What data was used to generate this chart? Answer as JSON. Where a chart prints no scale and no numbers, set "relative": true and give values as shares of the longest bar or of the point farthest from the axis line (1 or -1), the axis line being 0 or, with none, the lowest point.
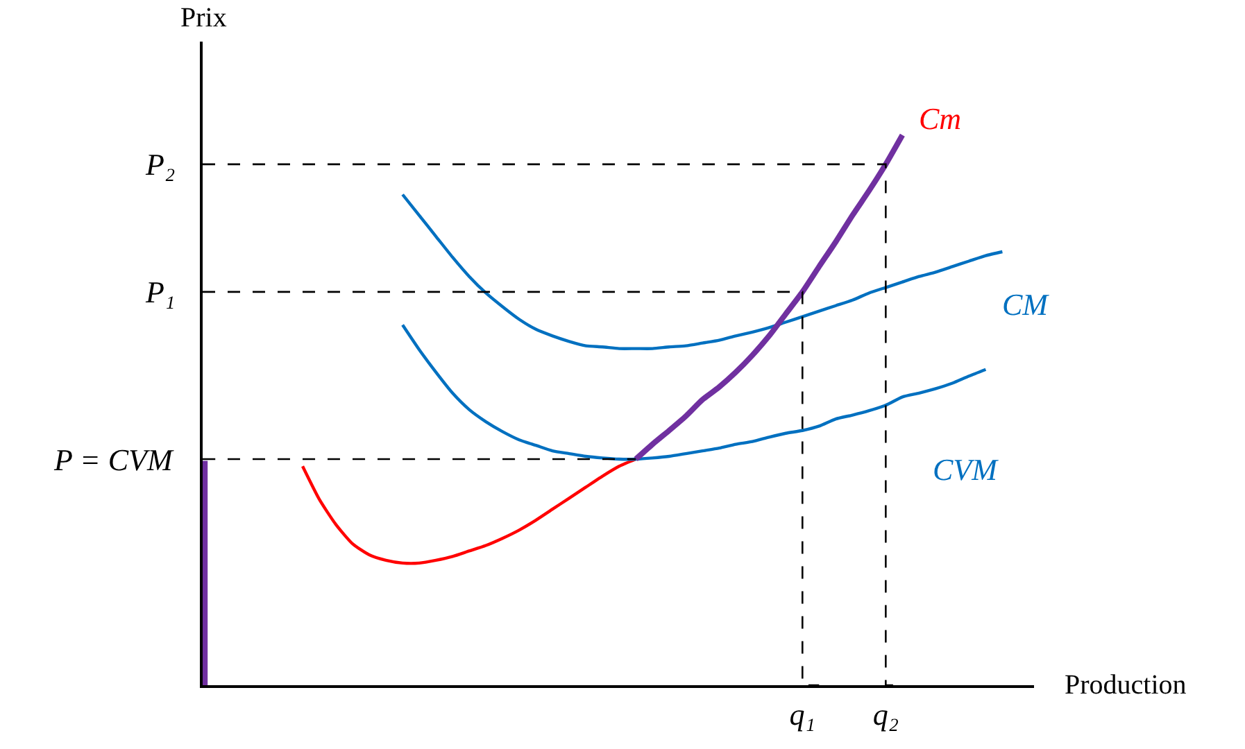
{
  "chart_data": {
    "type": "line",
    "relative": true,
    "xlabel": "Production",
    "ylabel": "Prix",
    "categories": [
      null,
      null,
      null,
      null,
      null,
      null,
      null,
      null,
      null,
      null,
      null,
      null,
      null,
      null,
      null,
      null,
      null,
      null,
      null,
      null,
      null,
      null,
      null,
      null,
      null,
      null,
      null,
      null,
      null,
      null,
      null,
      null,
      null,
      null,
      null,
      null,
      "q₁",
      null,
      null,
      null,
      null,
      "q₂",
      null,
      null,
      null,
      null,
      null,
      null,
      null,
      null
    ],
    "legend": false,
    "marker": "none",
    "series": [
      {
        "name": "Cm",
        "color": "#ff0000",
        "values": [
          null,
          null,
          null,
          null,
          null,
          null,
          0.398,
          0.338,
          0.292,
          0.257,
          0.237,
          0.227,
          0.222,
          0.222,
          0.227,
          0.234,
          0.244,
          0.254,
          0.267,
          0.282,
          0.3,
          0.32,
          0.34,
          0.36,
          0.38,
          0.398,
          0.411,
          null,
          null,
          null,
          null,
          null,
          null,
          null,
          null,
          null,
          null,
          null,
          null,
          null,
          null,
          null,
          null,
          null,
          null,
          null,
          null,
          null,
          null,
          null
        ]
      },
      {
        "name": "CM",
        "color": "#0070c0",
        "values": [
          null,
          null,
          null,
          null,
          null,
          null,
          null,
          null,
          null,
          null,
          null,
          null,
          0.892,
          0.854,
          0.816,
          0.778,
          0.743,
          0.713,
          0.688,
          0.665,
          0.647,
          0.635,
          0.625,
          0.617,
          0.615,
          0.612,
          0.612,
          0.612,
          0.615,
          0.617,
          0.622,
          0.627,
          0.635,
          0.642,
          0.65,
          0.66,
          0.67,
          0.68,
          0.69,
          0.7,
          0.713,
          0.723,
          0.733,
          0.743,
          0.751,
          0.761,
          0.771,
          0.781,
          0.788,
          null
        ]
      },
      {
        "name": "CVM",
        "color": "#0070c0",
        "values": [
          null,
          null,
          null,
          null,
          null,
          null,
          null,
          null,
          null,
          null,
          null,
          null,
          0.655,
          0.61,
          0.569,
          0.531,
          0.501,
          0.479,
          0.461,
          0.446,
          0.436,
          0.426,
          0.421,
          0.416,
          0.413,
          0.411,
          0.411,
          0.413,
          0.416,
          0.421,
          0.426,
          0.431,
          0.438,
          0.443,
          0.451,
          0.458,
          0.463,
          0.471,
          0.484,
          0.491,
          0.499,
          0.509,
          0.524,
          0.531,
          0.539,
          0.549,
          0.562,
          0.574,
          null,
          null
        ]
      },
      {
        "type": "bar",
        "color": "#7030a0",
        "values": [
          0.408,
          null,
          null,
          null,
          null,
          null,
          null,
          null,
          null,
          null,
          null,
          null,
          null,
          null,
          null,
          null,
          null,
          null,
          null,
          null,
          null,
          null,
          null,
          null,
          null,
          null,
          null,
          null,
          null,
          null,
          null,
          null,
          null,
          null,
          null,
          null,
          null,
          null,
          null,
          null,
          null,
          null,
          null,
          null,
          null,
          null,
          null,
          null,
          null,
          null
        ]
      },
      {
        "color": "#7030a0",
        "values": [
          null,
          null,
          null,
          null,
          null,
          null,
          null,
          null,
          null,
          null,
          null,
          null,
          null,
          null,
          null,
          null,
          null,
          null,
          null,
          null,
          null,
          null,
          null,
          null,
          null,
          null,
          0.411,
          0.438,
          0.463,
          0.489,
          0.519,
          0.542,
          0.569,
          0.6,
          0.635,
          0.675,
          0.715,
          0.761,
          0.806,
          0.854,
          0.899,
          0.947,
          1.0,
          null,
          null,
          null,
          null,
          null,
          null,
          null
        ]
      },
      {
        "type": "step",
        "color": "#000000",
        "line_style": "dashed",
        "values": [
          0.947,
          0.947,
          0.947,
          0.947,
          0.947,
          0.947,
          0.947,
          0.947,
          0.947,
          0.947,
          0.947,
          0.947,
          0.947,
          0.947,
          0.947,
          0.947,
          0.947,
          0.947,
          0.947,
          0.947,
          0.947,
          0.947,
          0.947,
          0.947,
          0.947,
          0.947,
          0.947,
          0.947,
          0.947,
          0.947,
          0.947,
          0.947,
          0.947,
          0.947,
          0.947,
          0.947,
          0.947,
          0.947,
          0.947,
          0.947,
          0.947,
          0.947,
          0,
          null,
          null,
          null,
          null,
          null,
          null,
          null
        ]
      },
      {
        "type": "step",
        "color": "#000000",
        "line_style": "dashed",
        "values": [
          0.715,
          0.715,
          0.715,
          0.715,
          0.715,
          0.715,
          0.715,
          0.715,
          0.715,
          0.715,
          0.715,
          0.715,
          0.715,
          0.715,
          0.715,
          0.715,
          0.715,
          0.715,
          0.715,
          0.715,
          0.715,
          0.715,
          0.715,
          0.715,
          0.715,
          0.715,
          0.715,
          0.715,
          0.715,
          0.715,
          0.715,
          0.715,
          0.715,
          0.715,
          0.715,
          0.715,
          0.715,
          0,
          null,
          null,
          null,
          null,
          null,
          null,
          null,
          null,
          null,
          null,
          null,
          null
        ]
      },
      {
        "color": "#000000",
        "line_style": "dashed",
        "values": [
          0.411,
          0.411,
          0.411,
          0.411,
          0.411,
          0.411,
          0.411,
          0.411,
          0.411,
          0.411,
          0.411,
          0.411,
          0.411,
          0.411,
          0.411,
          0.411,
          0.411,
          0.411,
          0.411,
          0.411,
          0.411,
          0.411,
          0.411,
          0.411,
          0.411,
          0.411,
          0.411,
          null,
          null,
          null,
          null,
          null,
          null,
          null,
          null,
          null,
          null,
          null,
          null,
          null,
          null,
          null,
          null,
          null,
          null,
          null,
          null,
          null,
          null,
          null
        ]
      }
    ],
    "annotations": [
      "P₂",
      "P₁",
      "P = CVM"
    ]
  }
}
